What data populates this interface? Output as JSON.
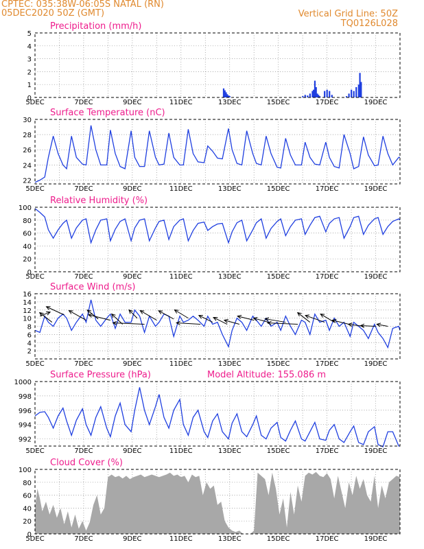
{
  "header": {
    "line1": "CPTEC:  035:38W-06:05S  NATAL (RN)",
    "line2": "05DEC2020 50Z (GMT)",
    "right1": "Vertical Grid Line: 50Z",
    "right2": "TQ0126L028"
  },
  "colors": {
    "header": "#e0892e",
    "title": "#ee1c8c",
    "line": "#1f3fe0",
    "bar": "#1f3fe0",
    "cloud": "#a8a8a8"
  },
  "chart_data": {
    "type": "line",
    "x_tick_labels": [
      "5DEC",
      "7DEC",
      "9DEC",
      "11DEC",
      "13DEC",
      "15DEC",
      "17DEC",
      "19DEC"
    ],
    "x_tick_days": [
      5,
      7,
      9,
      11,
      13,
      15,
      17,
      19
    ],
    "xlim_days": [
      5,
      20
    ],
    "panels": [
      {
        "id": "precip",
        "type": "bar",
        "title": "Precipitation (mm/h)",
        "ylim": [
          0,
          5
        ],
        "yticks": [
          0,
          1,
          2,
          3,
          4,
          5
        ],
        "x_days": [
          12.75,
          12.8,
          12.85,
          12.9,
          12.95,
          13.0,
          16.0,
          16.1,
          16.2,
          16.3,
          16.4,
          16.45,
          16.5,
          16.55,
          16.6,
          16.65,
          16.7,
          16.9,
          17.0,
          17.1,
          17.2,
          17.8,
          17.9,
          18.0,
          18.1,
          18.2,
          18.3,
          18.35,
          18.4
        ],
        "values": [
          0.7,
          0.55,
          0.4,
          0.25,
          0.15,
          0.1,
          0.1,
          0.2,
          0.15,
          0.3,
          0.5,
          0.6,
          1.3,
          0.8,
          0.3,
          0.2,
          0.1,
          0.5,
          0.6,
          0.5,
          0.2,
          0.1,
          0.3,
          0.6,
          0.5,
          0.8,
          1.0,
          1.9,
          1.2
        ]
      },
      {
        "id": "temp",
        "type": "line",
        "title": "Surface Temperature (nC)",
        "ylim": [
          21.5,
          30
        ],
        "yticks": [
          22,
          24,
          26,
          28,
          30
        ],
        "x_days": [
          5.0,
          5.2,
          5.4,
          5.55,
          5.75,
          5.95,
          6.15,
          6.3,
          6.5,
          6.7,
          6.95,
          7.1,
          7.3,
          7.5,
          7.7,
          7.95,
          8.1,
          8.3,
          8.5,
          8.7,
          8.95,
          9.1,
          9.3,
          9.5,
          9.7,
          9.95,
          10.1,
          10.3,
          10.5,
          10.7,
          10.95,
          11.1,
          11.3,
          11.5,
          11.7,
          11.95,
          12.1,
          12.3,
          12.5,
          12.7,
          12.95,
          13.1,
          13.3,
          13.5,
          13.7,
          13.95,
          14.1,
          14.3,
          14.5,
          14.7,
          14.95,
          15.1,
          15.3,
          15.5,
          15.7,
          15.95,
          16.1,
          16.3,
          16.5,
          16.7,
          16.95,
          17.1,
          17.3,
          17.5,
          17.7,
          17.95,
          18.1,
          18.3,
          18.5,
          18.7,
          18.95,
          19.1,
          19.3,
          19.5,
          19.7,
          19.95,
          20.0
        ],
        "values": [
          21.7,
          22.0,
          22.4,
          25.0,
          27.8,
          25.5,
          24.0,
          23.5,
          27.8,
          25.0,
          24.1,
          24.0,
          29.2,
          26.0,
          24.0,
          24.0,
          28.6,
          25.5,
          23.8,
          23.5,
          28.5,
          25.0,
          23.8,
          23.8,
          28.5,
          25.0,
          24.0,
          24.1,
          28.2,
          25.0,
          24.0,
          24.0,
          28.7,
          25.5,
          24.4,
          24.3,
          26.5,
          25.8,
          24.9,
          24.8,
          28.8,
          26.0,
          24.2,
          24.0,
          28.5,
          25.5,
          24.2,
          24.0,
          27.8,
          25.5,
          23.7,
          23.6,
          27.5,
          25.3,
          24.0,
          24.0,
          27.0,
          25.0,
          24.1,
          24.0,
          27.0,
          25.0,
          23.8,
          23.6,
          28.0,
          25.5,
          23.5,
          23.8,
          27.7,
          25.3,
          23.9,
          24.0,
          27.8,
          25.5,
          24.0,
          25.0,
          25.0
        ]
      },
      {
        "id": "rh",
        "type": "line",
        "title": "Relative Humidity (%)",
        "ylim": [
          0,
          100
        ],
        "yticks": [
          0,
          20,
          40,
          60,
          80,
          100
        ],
        "x_days": [
          5.0,
          5.2,
          5.4,
          5.55,
          5.75,
          5.95,
          6.15,
          6.3,
          6.5,
          6.7,
          6.95,
          7.1,
          7.3,
          7.5,
          7.7,
          7.95,
          8.1,
          8.3,
          8.5,
          8.7,
          8.95,
          9.1,
          9.3,
          9.5,
          9.7,
          9.95,
          10.1,
          10.3,
          10.5,
          10.7,
          10.95,
          11.1,
          11.3,
          11.5,
          11.7,
          11.95,
          12.1,
          12.3,
          12.5,
          12.7,
          12.95,
          13.1,
          13.3,
          13.5,
          13.7,
          13.95,
          14.1,
          14.3,
          14.5,
          14.7,
          14.95,
          15.1,
          15.3,
          15.5,
          15.7,
          15.95,
          16.1,
          16.3,
          16.5,
          16.7,
          16.95,
          17.1,
          17.3,
          17.5,
          17.7,
          17.95,
          18.1,
          18.3,
          18.5,
          18.7,
          18.95,
          19.1,
          19.3,
          19.5,
          19.7,
          19.95,
          20.0
        ],
        "values": [
          98,
          92,
          85,
          65,
          52,
          65,
          75,
          80,
          52,
          68,
          80,
          82,
          45,
          65,
          80,
          82,
          48,
          66,
          78,
          82,
          48,
          68,
          80,
          82,
          48,
          68,
          78,
          80,
          50,
          70,
          80,
          82,
          48,
          64,
          75,
          77,
          64,
          70,
          74,
          75,
          45,
          62,
          76,
          80,
          48,
          65,
          76,
          82,
          52,
          67,
          78,
          82,
          56,
          70,
          80,
          82,
          58,
          72,
          84,
          86,
          62,
          75,
          82,
          84,
          52,
          70,
          84,
          86,
          58,
          72,
          82,
          84,
          58,
          70,
          78,
          82,
          80
        ]
      },
      {
        "id": "wind",
        "type": "line",
        "title": "Surface Wind (m/s)",
        "ylim": [
          0,
          16
        ],
        "yticks": [
          2,
          4,
          6,
          8,
          10,
          12,
          14,
          16
        ],
        "x_days": [
          5.0,
          5.2,
          5.4,
          5.55,
          5.75,
          5.95,
          6.15,
          6.3,
          6.5,
          6.7,
          6.95,
          7.1,
          7.3,
          7.5,
          7.7,
          7.95,
          8.1,
          8.3,
          8.5,
          8.7,
          8.95,
          9.1,
          9.3,
          9.5,
          9.7,
          9.95,
          10.1,
          10.3,
          10.5,
          10.7,
          10.95,
          11.1,
          11.3,
          11.5,
          11.7,
          11.95,
          12.1,
          12.3,
          12.5,
          12.7,
          12.95,
          13.1,
          13.3,
          13.5,
          13.7,
          13.95,
          14.1,
          14.3,
          14.5,
          14.7,
          14.95,
          15.1,
          15.3,
          15.5,
          15.7,
          15.95,
          16.1,
          16.3,
          16.5,
          16.7,
          16.95,
          17.1,
          17.3,
          17.5,
          17.7,
          17.95,
          18.1,
          18.3,
          18.5,
          18.7,
          18.95,
          19.1,
          19.3,
          19.5,
          19.7,
          19.95,
          20.0
        ],
        "values": [
          7,
          6.5,
          10.5,
          9,
          8,
          10,
          11,
          10,
          7,
          9,
          11,
          9,
          14.5,
          9.5,
          8,
          10,
          11,
          7.5,
          11,
          9,
          9,
          12,
          10.5,
          6.5,
          10.5,
          8,
          9,
          11,
          10.5,
          5.5,
          10.5,
          9,
          9.5,
          10.5,
          9.5,
          8,
          10.5,
          8.5,
          9,
          6,
          3,
          7,
          10,
          9,
          7,
          10.5,
          9.5,
          8,
          10,
          8,
          9,
          7,
          10.5,
          8,
          6,
          9.5,
          9,
          6,
          11,
          9,
          9.5,
          7,
          10,
          8,
          9,
          5.5,
          9,
          8,
          7,
          5,
          8.5,
          6.5,
          5,
          2.8,
          7.5,
          8,
          7
        ]
      },
      {
        "id": "pres",
        "type": "line",
        "title": "Surface Pressure (hPa)",
        "annotation": "Model Altitude: 155.086 m",
        "ylim": [
          991,
          1000
        ],
        "yticks": [
          992,
          994,
          996,
          998,
          1000
        ],
        "x_days": [
          5.0,
          5.2,
          5.4,
          5.55,
          5.75,
          5.95,
          6.15,
          6.3,
          6.5,
          6.7,
          6.95,
          7.1,
          7.3,
          7.5,
          7.7,
          7.95,
          8.1,
          8.3,
          8.5,
          8.7,
          8.95,
          9.1,
          9.3,
          9.5,
          9.7,
          9.95,
          10.1,
          10.3,
          10.5,
          10.7,
          10.95,
          11.1,
          11.3,
          11.5,
          11.7,
          11.95,
          12.1,
          12.3,
          12.5,
          12.7,
          12.95,
          13.1,
          13.3,
          13.5,
          13.7,
          13.95,
          14.1,
          14.3,
          14.5,
          14.7,
          14.95,
          15.1,
          15.3,
          15.5,
          15.7,
          15.95,
          16.1,
          16.3,
          16.5,
          16.7,
          16.95,
          17.1,
          17.3,
          17.5,
          17.7,
          17.95,
          18.1,
          18.3,
          18.5,
          18.7,
          18.95,
          19.1,
          19.3,
          19.5,
          19.7,
          19.95,
          20.0
        ],
        "values": [
          995.2,
          995.7,
          995.8,
          995,
          993.5,
          995.2,
          996.3,
          994.5,
          992.5,
          994.6,
          996.2,
          994,
          992.5,
          995,
          996.5,
          993.5,
          992.3,
          995.2,
          997,
          994,
          993,
          996,
          999.2,
          996,
          994,
          996.5,
          998.2,
          995,
          993.5,
          996,
          997.5,
          994,
          992.5,
          995,
          996,
          993,
          992.2,
          994.5,
          995.5,
          993,
          992,
          994.2,
          995.5,
          993,
          992.3,
          994,
          995.2,
          992.5,
          992,
          993.5,
          994.3,
          992.2,
          991.7,
          993.2,
          994.5,
          992,
          991.7,
          993,
          994.3,
          992,
          991.8,
          993.2,
          994,
          992,
          991.5,
          993,
          993.8,
          991.5,
          991.2,
          993,
          993.7,
          991.2,
          990.9,
          993,
          993,
          991,
          991
        ]
      },
      {
        "id": "cloud",
        "type": "area",
        "title": "Cloud Cover (%)",
        "ylim": [
          0,
          100
        ],
        "yticks": [
          0,
          20,
          40,
          60,
          80,
          100
        ],
        "x_days": [
          5.0,
          5.1,
          5.2,
          5.3,
          5.45,
          5.6,
          5.75,
          5.9,
          6.05,
          6.2,
          6.35,
          6.5,
          6.65,
          6.8,
          6.95,
          7.1,
          7.25,
          7.4,
          7.55,
          7.7,
          7.85,
          8.0,
          8.15,
          8.3,
          8.45,
          8.6,
          8.75,
          8.9,
          9.05,
          9.2,
          9.35,
          9.5,
          9.65,
          9.8,
          9.95,
          10.1,
          10.25,
          10.4,
          10.55,
          10.7,
          10.85,
          11.0,
          11.15,
          11.3,
          11.45,
          11.6,
          11.75,
          11.9,
          12.05,
          12.2,
          12.35,
          12.5,
          12.65,
          12.8,
          12.95,
          13.1,
          13.25,
          13.4,
          13.55,
          13.7,
          13.85,
          14.0,
          14.15,
          14.3,
          14.45,
          14.6,
          14.75,
          14.9,
          15.05,
          15.2,
          15.35,
          15.5,
          15.65,
          15.8,
          15.95,
          16.1,
          16.25,
          16.4,
          16.55,
          16.7,
          16.85,
          17.0,
          17.15,
          17.3,
          17.45,
          17.6,
          17.75,
          17.9,
          18.05,
          18.2,
          18.35,
          18.5,
          18.65,
          18.8,
          18.95,
          19.1,
          19.25,
          19.4,
          19.55,
          19.7,
          19.85,
          20.0
        ],
        "values": [
          40,
          70,
          55,
          35,
          50,
          30,
          45,
          25,
          40,
          15,
          35,
          10,
          30,
          8,
          20,
          5,
          18,
          45,
          60,
          30,
          40,
          88,
          92,
          88,
          90,
          86,
          90,
          85,
          88,
          90,
          92,
          88,
          90,
          92,
          90,
          88,
          90,
          92,
          95,
          90,
          92,
          88,
          90,
          80,
          92,
          88,
          90,
          60,
          80,
          70,
          75,
          45,
          50,
          20,
          10,
          5,
          3,
          5,
          0,
          0,
          0,
          5,
          95,
          90,
          85,
          60,
          95,
          70,
          30,
          55,
          10,
          65,
          30,
          75,
          50,
          90,
          95,
          92,
          96,
          90,
          88,
          94,
          85,
          55,
          90,
          65,
          40,
          80,
          60,
          90,
          70,
          85,
          60,
          50,
          90,
          40,
          75,
          55,
          80,
          85,
          90,
          88
        ]
      }
    ],
    "wind_barbs": [
      {
        "x_day": 5.2,
        "v": 10.5,
        "dx": 15,
        "dy": 6
      },
      {
        "x_day": 5.7,
        "v": 9,
        "dx": -18,
        "dy": 14
      },
      {
        "x_day": 6.2,
        "v": 10.8,
        "dx": -26,
        "dy": 12
      },
      {
        "x_day": 7.1,
        "v": 9.5,
        "dx": -25,
        "dy": 14
      },
      {
        "x_day": 7.6,
        "v": 9.8,
        "dx": -16,
        "dy": 13
      },
      {
        "x_day": 8.1,
        "v": 9.5,
        "dx": -32,
        "dy": 8
      },
      {
        "x_day": 8.6,
        "v": 8.5,
        "dx": -16,
        "dy": 15
      },
      {
        "x_day": 9.2,
        "v": 10,
        "dx": -12,
        "dy": 12
      },
      {
        "x_day": 9.5,
        "v": 8.5,
        "dx": -46,
        "dy": 2
      },
      {
        "x_day": 10.0,
        "v": 9.5,
        "dx": -24,
        "dy": 14
      },
      {
        "x_day": 10.7,
        "v": 9.8,
        "dx": -22,
        "dy": 12
      },
      {
        "x_day": 11.3,
        "v": 10,
        "dx": -20,
        "dy": 12
      },
      {
        "x_day": 11.8,
        "v": 8.5,
        "dx": -35,
        "dy": 2
      },
      {
        "x_day": 12.3,
        "v": 9,
        "dx": -20,
        "dy": 10
      },
      {
        "x_day": 12.9,
        "v": 8.5,
        "dx": -20,
        "dy": 10
      },
      {
        "x_day": 13.4,
        "v": 8.5,
        "dx": -22,
        "dy": 6
      },
      {
        "x_day": 14.0,
        "v": 9.5,
        "dx": -24,
        "dy": 6
      },
      {
        "x_day": 14.6,
        "v": 9,
        "dx": -22,
        "dy": 6
      },
      {
        "x_day": 15.3,
        "v": 9,
        "dx": -30,
        "dy": 5
      },
      {
        "x_day": 15.8,
        "v": 8.5,
        "dx": -44,
        "dy": 2
      },
      {
        "x_day": 16.3,
        "v": 9,
        "dx": -18,
        "dy": 14
      },
      {
        "x_day": 16.9,
        "v": 9,
        "dx": -28,
        "dy": 10
      },
      {
        "x_day": 17.3,
        "v": 9,
        "dx": -20,
        "dy": 12
      },
      {
        "x_day": 17.9,
        "v": 8.5,
        "dx": -24,
        "dy": 6
      },
      {
        "x_day": 18.5,
        "v": 8,
        "dx": -22,
        "dy": 3
      },
      {
        "x_day": 19.0,
        "v": 8,
        "dx": -22,
        "dy": 1
      },
      {
        "x_day": 19.5,
        "v": 8,
        "dx": -16,
        "dy": 3
      }
    ]
  }
}
